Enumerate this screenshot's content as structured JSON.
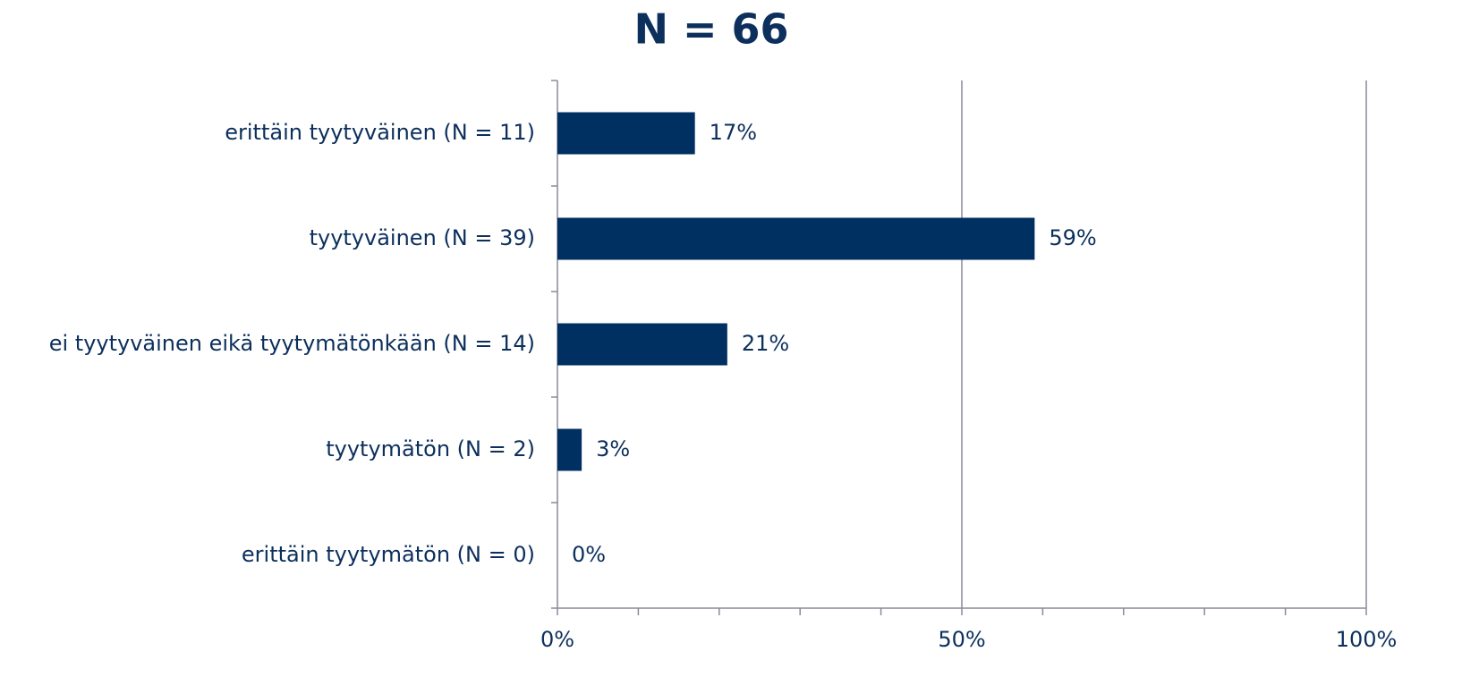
{
  "chart_data": {
    "type": "hbar",
    "title": "N = 66",
    "categories": [
      "erittäin tyytyväinen (N = 11)",
      "tyytyväinen (N = 39)",
      "ei tyytyväinen eikä tyytymätönkään (N = 14)",
      "tyytymätön (N = 2)",
      "erittäin tyytymätön (N = 0)"
    ],
    "values": [
      17,
      59,
      21,
      3,
      0
    ],
    "value_labels": [
      "17%",
      "59%",
      "21%",
      "3%",
      "0%"
    ],
    "color": "#002f61",
    "xlim": [
      0,
      100
    ],
    "xticks": [
      {
        "value": 0,
        "label": "0%"
      },
      {
        "value": 50,
        "label": "50%"
      },
      {
        "value": 100,
        "label": "100%"
      }
    ],
    "xminorticks": [
      10,
      20,
      30,
      40,
      60,
      70,
      80,
      90
    ],
    "grid": true
  }
}
